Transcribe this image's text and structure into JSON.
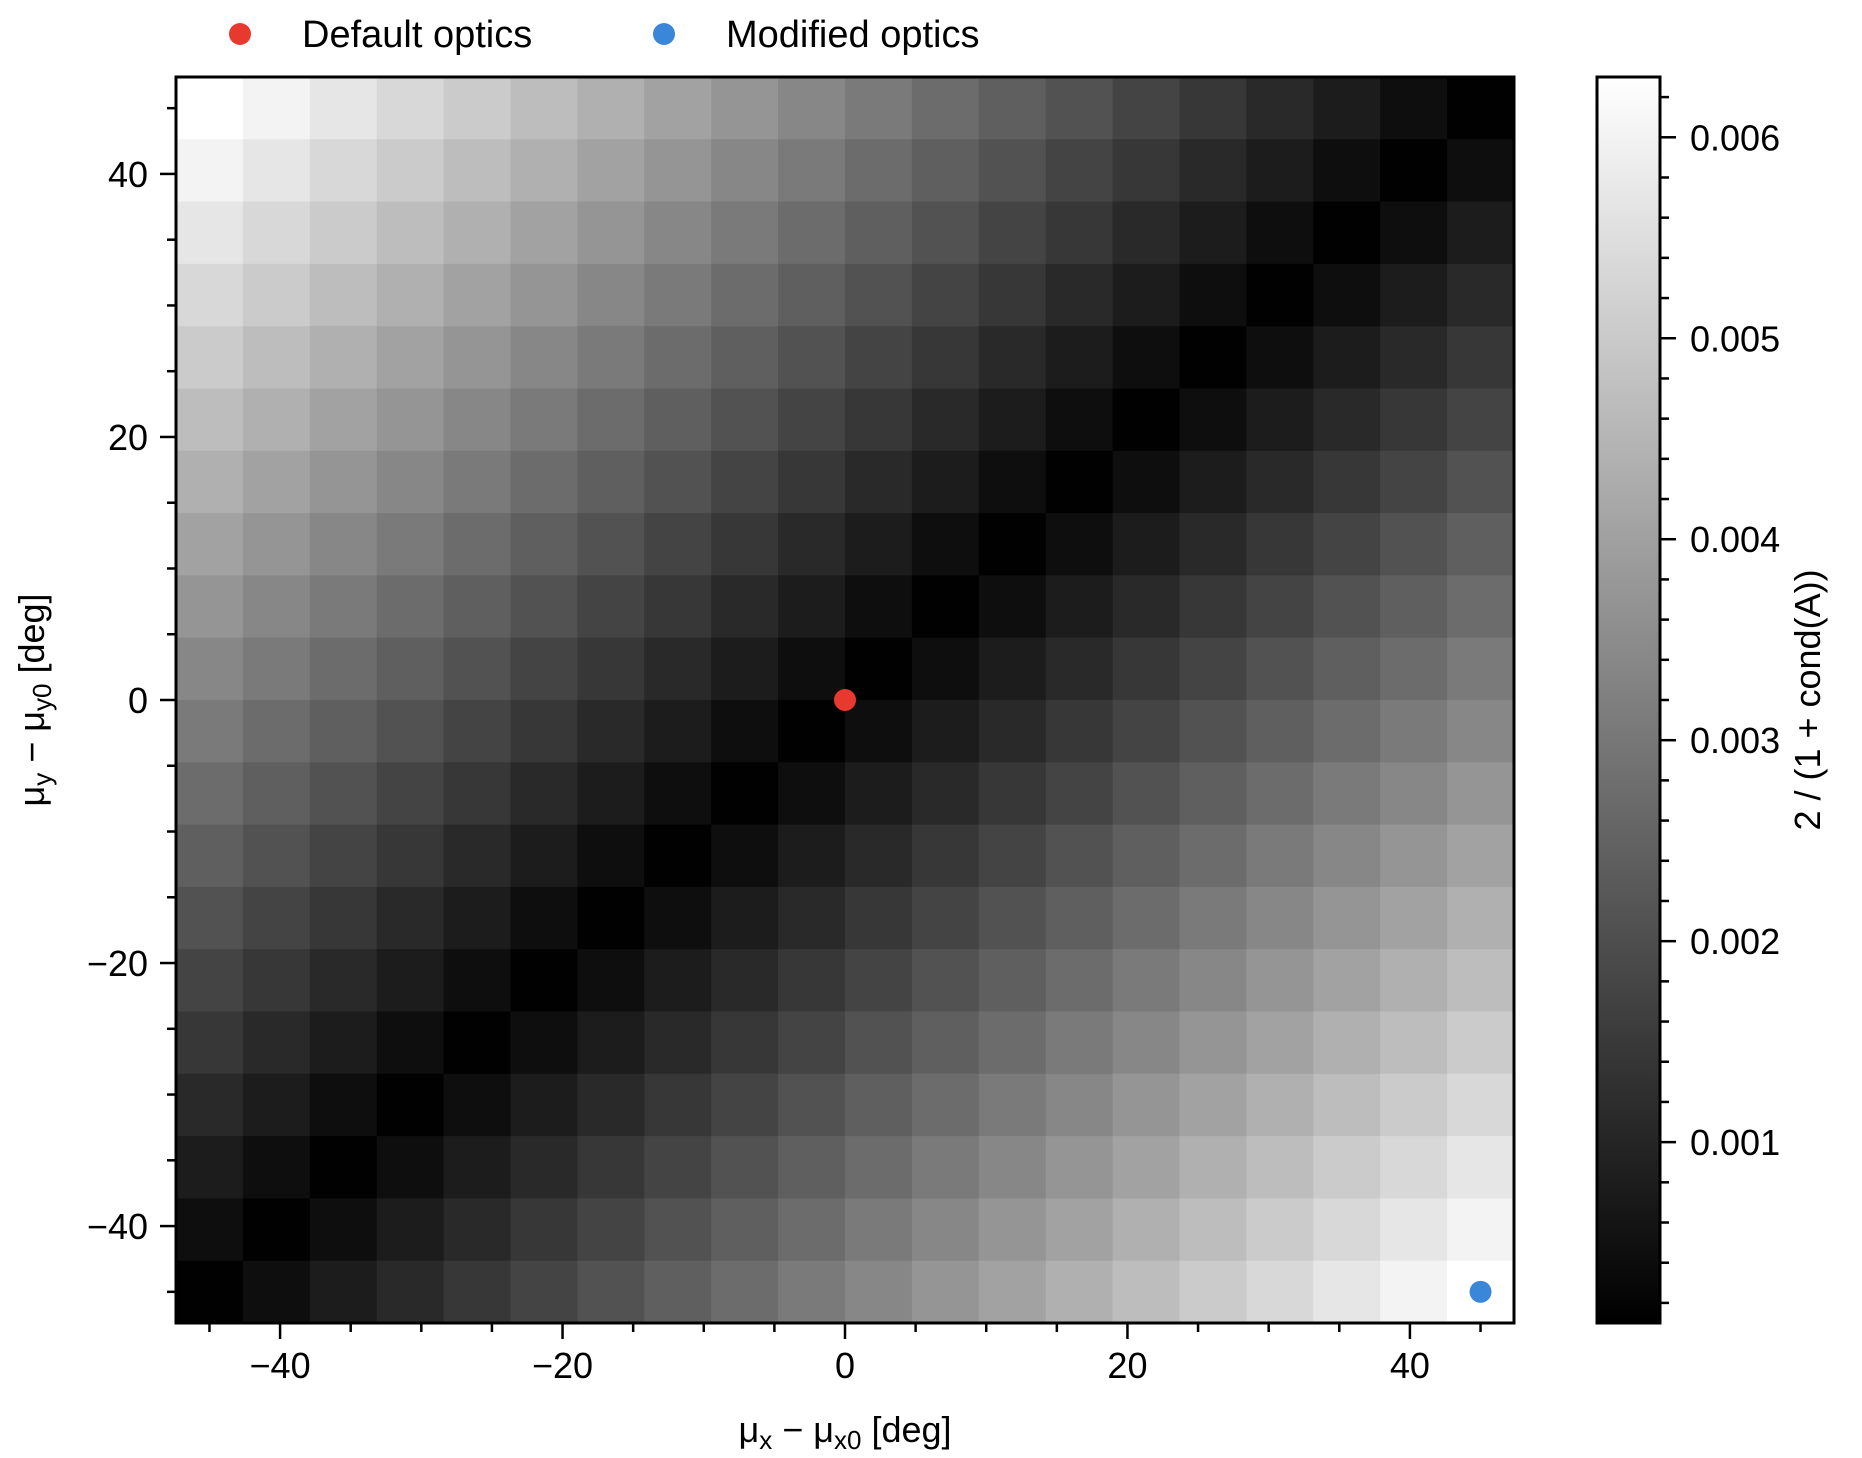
{
  "chart_data": {
    "type": "heatmap",
    "title": "",
    "xlabel": {
      "main": "μ",
      "sub1": "x",
      "mid": " − μ",
      "sub2": "x0",
      "tail": " [deg]"
    },
    "ylabel": {
      "main": "μ",
      "sub1": "y",
      "mid": " − μ",
      "sub2": "y0",
      "tail": " [deg]"
    },
    "x_range_deg": [
      -47.37,
      47.37
    ],
    "y_range_deg": [
      -47.37,
      47.37
    ],
    "grid_n": 20,
    "xticks": [
      -40,
      -20,
      0,
      20,
      40
    ],
    "yticks": [
      -40,
      -20,
      0,
      20,
      40
    ],
    "xtick_labels": [
      "−40",
      "−20",
      "0",
      "20",
      "40"
    ],
    "ytick_labels": [
      "−40",
      "−20",
      "0",
      "20",
      "40"
    ],
    "colormap": "gray",
    "colorbar": {
      "label": "2 / (1 + cond(A))",
      "range": [
        0.0001,
        0.0063
      ],
      "ticks": [
        0.001,
        0.002,
        0.003,
        0.004,
        0.005,
        0.006
      ],
      "tick_labels": [
        "0.001",
        "0.002",
        "0.003",
        "0.004",
        "0.005",
        "0.006"
      ]
    },
    "model_description": "value approx 0.00625 * |mux - muy| / 90.5 peaking where mux=+45 and muy=-45, minimum along diagonal mux = muy",
    "points": [
      {
        "name": "Default optics",
        "x": 0,
        "y": 0,
        "color": "#e8392e"
      },
      {
        "name": "Modified optics",
        "x": 45,
        "y": -45,
        "color": "#3a86d9"
      }
    ],
    "legend": {
      "placement": "top",
      "items": [
        {
          "label": "Default optics",
          "color": "#e8392e"
        },
        {
          "label": "Modified optics",
          "color": "#3a86d9"
        }
      ]
    }
  }
}
